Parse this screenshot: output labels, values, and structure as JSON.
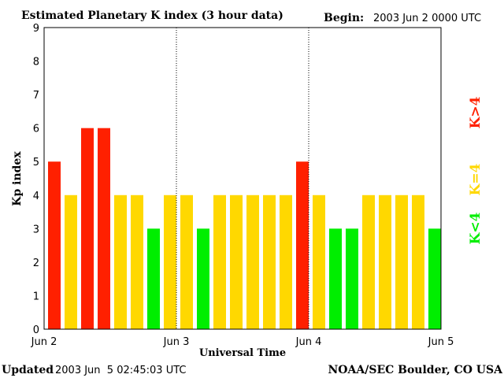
{
  "chart_data": {
    "type": "bar",
    "title": "Estimated Planetary K index (3 hour data)",
    "begin_label": "Begin:",
    "begin_value": "2003 Jun 2 0000 UTC",
    "xlabel": "Universal Time",
    "ylabel": "Kp index",
    "ylim": [
      0,
      9
    ],
    "yticks": [
      "0",
      "1",
      "2",
      "3",
      "4",
      "5",
      "6",
      "7",
      "8",
      "9"
    ],
    "xticks": [
      "Jun 2",
      "Jun 3",
      "Jun 4",
      "Jun 5"
    ],
    "values": [
      5,
      4,
      6,
      6,
      4,
      4,
      3,
      4,
      4,
      3,
      4,
      4,
      4,
      4,
      4,
      5,
      4,
      3,
      3,
      4,
      4,
      4,
      4,
      3
    ],
    "colors": {
      "high": "#ff2000",
      "equal": "#ffd800",
      "low": "#00ee00"
    },
    "legend": [
      {
        "label": "K>4",
        "color": "#ff2000"
      },
      {
        "label": "K=4",
        "color": "#ffd800"
      },
      {
        "label": "K<4",
        "color": "#00ee00"
      }
    ],
    "legend_placement": "right",
    "grid": false
  },
  "footer": {
    "updated_label": "Updated",
    "updated_value": "2003 Jun  5 02:45:03 UTC",
    "source": "NOAA/SEC Boulder, CO USA"
  }
}
